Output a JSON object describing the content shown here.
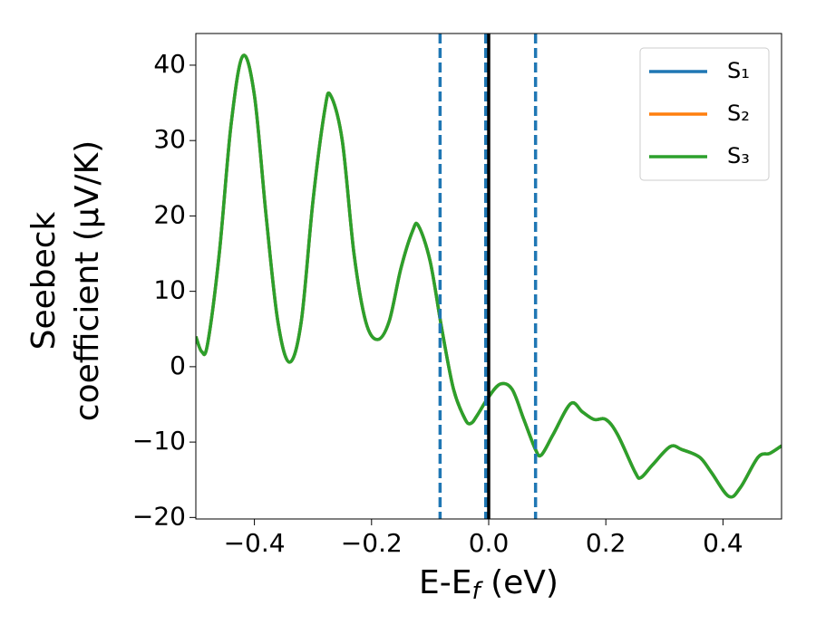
{
  "chart_data": {
    "type": "line",
    "ylabel_lines": [
      "Seebeck",
      "coefficient  (μV/K)"
    ],
    "xlabel_parts": [
      "E-E",
      "f",
      " (eV)"
    ],
    "x": [
      -0.5,
      -0.49,
      -0.48,
      -0.46,
      -0.44,
      -0.42,
      -0.4,
      -0.38,
      -0.36,
      -0.34,
      -0.32,
      -0.3,
      -0.28,
      -0.27,
      -0.25,
      -0.23,
      -0.21,
      -0.19,
      -0.17,
      -0.15,
      -0.13,
      -0.12,
      -0.1,
      -0.08,
      -0.06,
      -0.04,
      -0.03,
      -0.02,
      0.0,
      0.02,
      0.04,
      0.06,
      0.08,
      0.09,
      0.11,
      0.14,
      0.16,
      0.18,
      0.2,
      0.22,
      0.25,
      0.26,
      0.28,
      0.31,
      0.33,
      0.36,
      0.38,
      0.41,
      0.43,
      0.46,
      0.48,
      0.5
    ],
    "series": [
      {
        "name": "S₁",
        "color": "#1f77b4",
        "values": [
          4,
          2,
          3,
          15,
          32,
          41.2,
          36,
          20,
          6,
          0.6,
          6,
          22,
          34,
          36,
          30,
          15,
          6,
          3.6,
          6,
          13,
          18,
          18.7,
          14,
          5,
          -3,
          -7,
          -7.5,
          -6.5,
          -4,
          -2.3,
          -3,
          -7,
          -11,
          -11.7,
          -9,
          -4.9,
          -6,
          -7,
          -7,
          -9,
          -14,
          -14.7,
          -13,
          -10.6,
          -11,
          -12,
          -14,
          -17.2,
          -16,
          -12,
          -11.5,
          -10.5
        ]
      },
      {
        "name": "S₂",
        "color": "#ff7f0e",
        "values": [
          4,
          2,
          3,
          15,
          32,
          41.2,
          36,
          20,
          6,
          0.6,
          6,
          22,
          34,
          36,
          30,
          15,
          6,
          3.6,
          6,
          13,
          18,
          18.7,
          14,
          5,
          -3,
          -7,
          -7.5,
          -6.5,
          -4,
          -2.3,
          -3,
          -7,
          -11,
          -11.7,
          -9,
          -4.9,
          -6,
          -7,
          -7,
          -9,
          -14,
          -14.7,
          -13,
          -10.6,
          -11,
          -12,
          -14,
          -17.2,
          -16,
          -12,
          -11.5,
          -10.5
        ]
      },
      {
        "name": "S₃",
        "color": "#2ca02c",
        "values": [
          4,
          2,
          3,
          15,
          32,
          41.2,
          36,
          20,
          6,
          0.6,
          6,
          22,
          34,
          36,
          30,
          15,
          6,
          3.6,
          6,
          13,
          18,
          18.7,
          14,
          5,
          -3,
          -7,
          -7.5,
          -6.5,
          -4,
          -2.3,
          -3,
          -7,
          -11,
          -11.7,
          -9,
          -4.9,
          -6,
          -7,
          -7,
          -9,
          -14,
          -14.7,
          -13,
          -10.6,
          -11,
          -12,
          -14,
          -17.2,
          -16,
          -12,
          -11.5,
          -10.5
        ]
      }
    ],
    "vlines": [
      {
        "x": -0.083,
        "style": "dashed",
        "color": "#1f77b4"
      },
      {
        "x": -0.005,
        "style": "dashed",
        "color": "#1f77b4"
      },
      {
        "x": 0.08,
        "style": "dashed",
        "color": "#1f77b4"
      },
      {
        "x": 0.0,
        "style": "solid",
        "color": "#000000"
      }
    ],
    "xlim": [
      -0.5,
      0.5
    ],
    "ylim": [
      -20.2,
      44.2
    ],
    "xticks": [
      {
        "value": -0.4,
        "label": "−0.4"
      },
      {
        "value": -0.2,
        "label": "−0.2"
      },
      {
        "value": 0,
        "label": "0.0"
      },
      {
        "value": 0.2,
        "label": "0.2"
      },
      {
        "value": 0.4,
        "label": "0.4"
      }
    ],
    "yticks": [
      {
        "value": -20,
        "label": "−20"
      },
      {
        "value": -10,
        "label": "−10"
      },
      0,
      10,
      20,
      30,
      40
    ],
    "legend": "upper right",
    "grid": false
  }
}
